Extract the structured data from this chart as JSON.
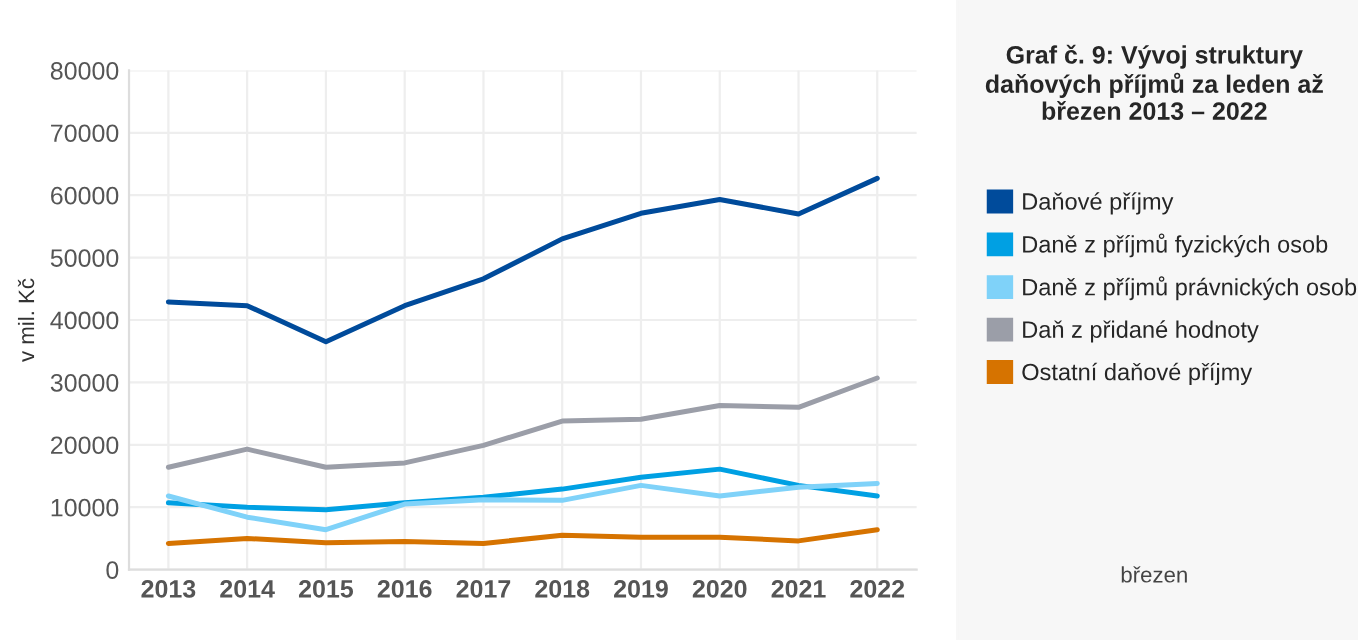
{
  "chart_data": {
    "type": "line",
    "title": "Graf č. 9: Vývoj struktury daňových příjmů za leden až březen 2013 – 2022",
    "ylabel": "v mil. Kč",
    "categories": [
      "2013",
      "2014",
      "2015",
      "2016",
      "2017",
      "2018",
      "2019",
      "2020",
      "2021",
      "2022"
    ],
    "series": [
      {
        "name": "Daňové příjmy",
        "color": "#004b9b",
        "values": [
          42900,
          42300,
          36500,
          42300,
          46600,
          53000,
          57100,
          59300,
          57000,
          62700
        ]
      },
      {
        "name": "Daně z příjmů fyzických osob",
        "color": "#00a0e3",
        "values": [
          10700,
          10000,
          9600,
          10700,
          11600,
          12900,
          14800,
          16100,
          13500,
          11800
        ]
      },
      {
        "name": "Daně z příjmů právnických osob",
        "color": "#7fd2f9",
        "values": [
          11800,
          8400,
          6400,
          10500,
          11200,
          11100,
          13500,
          11800,
          13200,
          13800
        ]
      },
      {
        "name": "Daň z přidané hodnoty",
        "color": "#9b9ea8",
        "values": [
          16400,
          19300,
          16400,
          17100,
          19900,
          23800,
          24100,
          26300,
          26000,
          30700
        ]
      },
      {
        "name": "Ostatní daňové příjmy",
        "color": "#d67300",
        "values": [
          4200,
          5000,
          4300,
          4500,
          4200,
          5500,
          5200,
          5200,
          4600,
          6400
        ]
      }
    ],
    "ylim": [
      0,
      80000
    ],
    "yticks": [
      0,
      10000,
      20000,
      30000,
      40000,
      50000,
      60000,
      70000,
      80000
    ],
    "grid": true,
    "legend": "right",
    "marker": "none",
    "line_style": "solid",
    "annotations": [
      "březen"
    ]
  }
}
